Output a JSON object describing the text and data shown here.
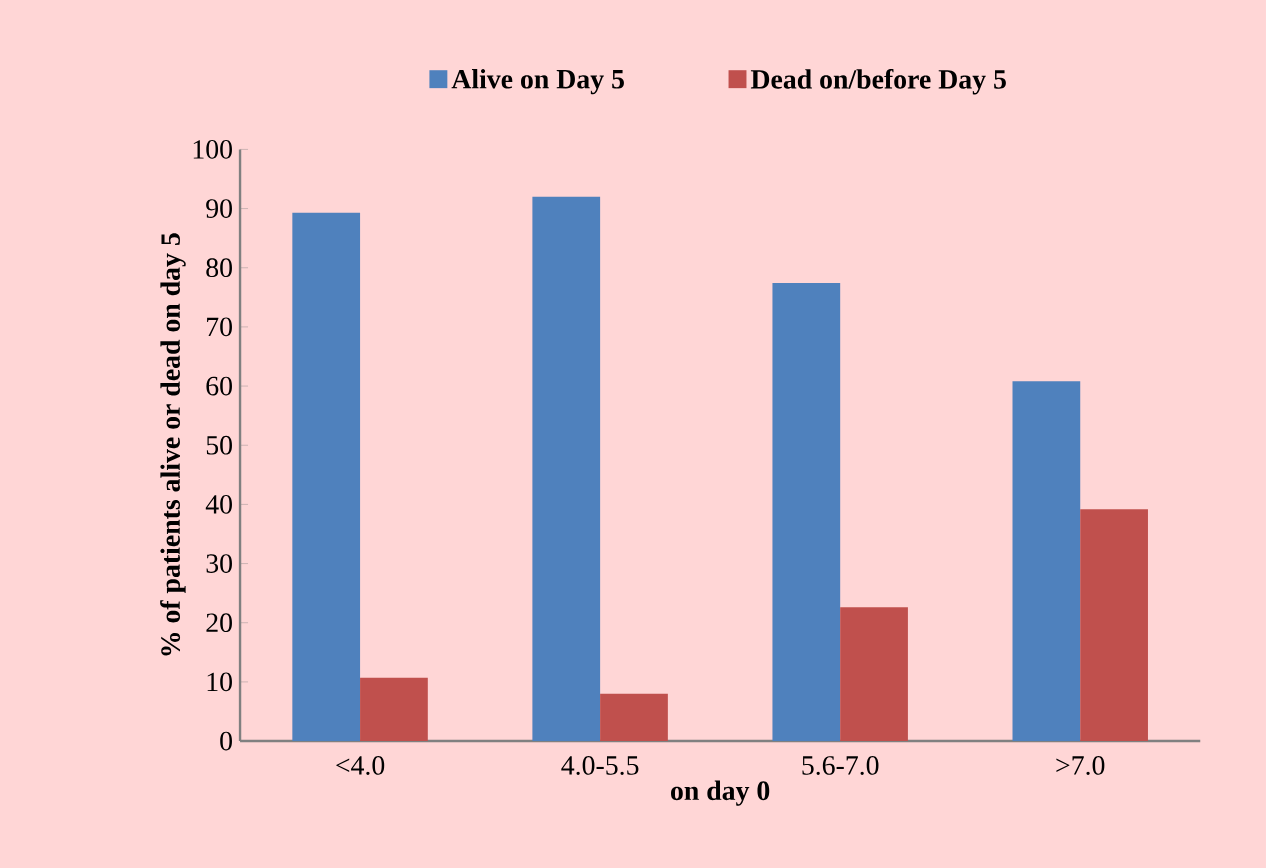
{
  "chart_data": {
    "type": "bar",
    "xlabel": "on day 0",
    "ylabel": "% of patients alive or dead on day 5",
    "categories": [
      "<4.0",
      "4.0-5.5",
      "5.6-7.0",
      ">7.0"
    ],
    "series": [
      {
        "name": "Alive on Day 5",
        "color": "#4f81bd",
        "values": [
          89.3,
          92,
          77.4,
          60.8
        ]
      },
      {
        "name": "Dead on/before Day 5",
        "color": "#c0504d",
        "values": [
          10.7,
          8,
          22.6,
          39.2
        ]
      }
    ],
    "ylim": [
      0,
      100
    ],
    "yticks": [
      0,
      10,
      20,
      30,
      40,
      50,
      60,
      70,
      80,
      90,
      100
    ],
    "grid": false,
    "legend": "top"
  }
}
